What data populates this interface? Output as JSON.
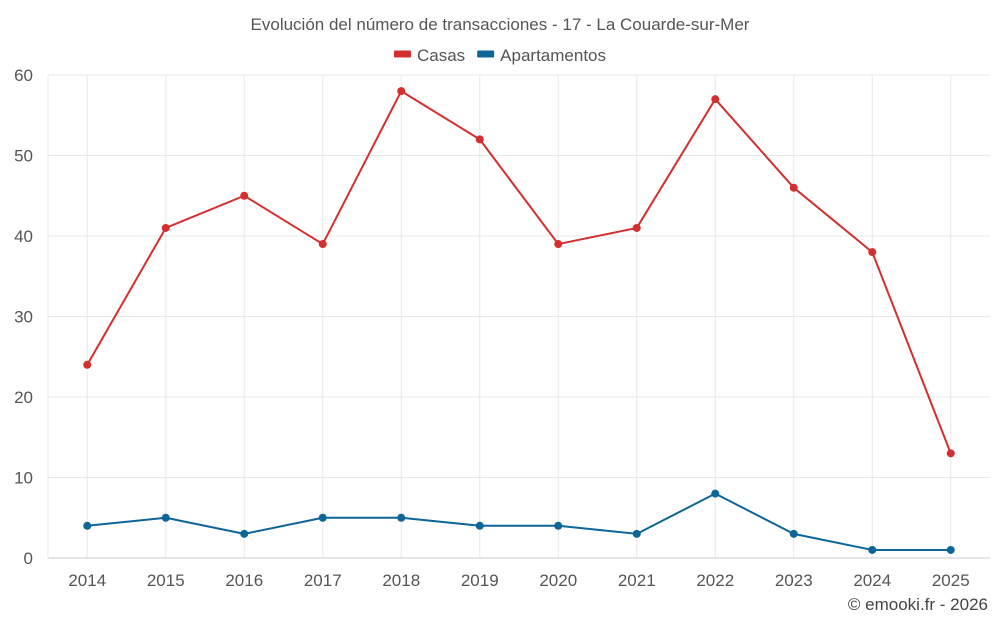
{
  "chart_data": {
    "type": "line",
    "title": "Evolución del número de transacciones - 17 - La Couarde-sur-Mer",
    "categories": [
      "2014",
      "2015",
      "2016",
      "2017",
      "2018",
      "2019",
      "2020",
      "2021",
      "2022",
      "2023",
      "2024",
      "2025"
    ],
    "series": [
      {
        "name": "Casas",
        "color": "#d32f2f",
        "values": [
          24,
          41,
          45,
          39,
          58,
          52,
          39,
          41,
          57,
          46,
          38,
          13
        ]
      },
      {
        "name": "Apartamentos",
        "color": "#0d6598",
        "values": [
          4,
          5,
          3,
          5,
          5,
          4,
          4,
          3,
          8,
          3,
          1,
          1
        ]
      }
    ],
    "ylim": [
      0,
      60
    ],
    "yticks": [
      0,
      10,
      20,
      30,
      40,
      50,
      60
    ],
    "grid": true,
    "legend_position": "top-center"
  },
  "credit": "© emooki.fr - 2026"
}
